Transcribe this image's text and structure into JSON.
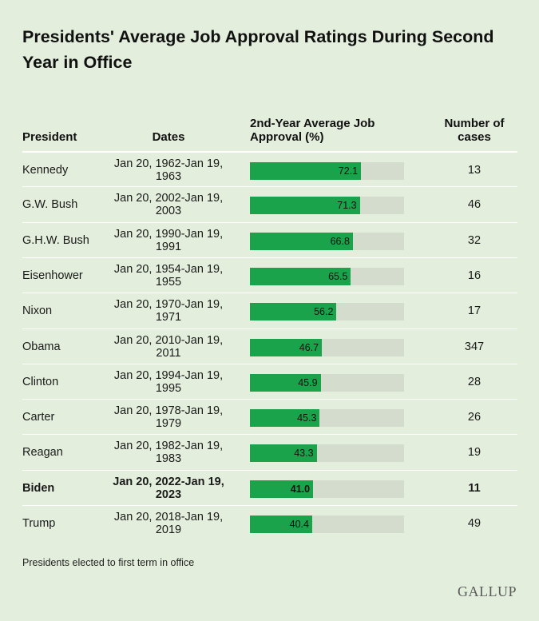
{
  "title": "Presidents' Average Job Approval Ratings During Second Year in Office",
  "headers": {
    "president": "President",
    "dates": "Dates",
    "approval": "2nd-Year Average Job Approval (%)",
    "cases": "Number of cases"
  },
  "colors": {
    "background": "#e3eedc",
    "bar": "#1aa34a",
    "bar_track": "#d3dccd"
  },
  "chart_data": {
    "type": "bar",
    "title": "Presidents' Average Job Approval Ratings During Second Year in Office",
    "ylabel": "2nd-Year Average Job Approval (%)",
    "ylim": [
      0,
      100
    ],
    "categories": [
      "Kennedy",
      "G.W. Bush",
      "G.H.W. Bush",
      "Eisenhower",
      "Nixon",
      "Obama",
      "Clinton",
      "Carter",
      "Reagan",
      "Biden",
      "Trump"
    ],
    "values": [
      72.1,
      71.3,
      66.8,
      65.5,
      56.2,
      46.7,
      45.9,
      45.3,
      43.3,
      41.0,
      40.4
    ],
    "rows": [
      {
        "president": "Kennedy",
        "dates": "Jan 20, 1962-Jan 19, 1963",
        "approval": 72.1,
        "approval_label": "72.1",
        "cases": "13",
        "highlight": false
      },
      {
        "president": "G.W. Bush",
        "dates": "Jan 20, 2002-Jan 19, 2003",
        "approval": 71.3,
        "approval_label": "71.3",
        "cases": "46",
        "highlight": false
      },
      {
        "president": "G.H.W. Bush",
        "dates": "Jan 20, 1990-Jan 19, 1991",
        "approval": 66.8,
        "approval_label": "66.8",
        "cases": "32",
        "highlight": false
      },
      {
        "president": "Eisenhower",
        "dates": "Jan 20, 1954-Jan 19, 1955",
        "approval": 65.5,
        "approval_label": "65.5",
        "cases": "16",
        "highlight": false
      },
      {
        "president": "Nixon",
        "dates": "Jan 20, 1970-Jan 19, 1971",
        "approval": 56.2,
        "approval_label": "56.2",
        "cases": "17",
        "highlight": false
      },
      {
        "president": "Obama",
        "dates": "Jan 20, 2010-Jan 19, 2011",
        "approval": 46.7,
        "approval_label": "46.7",
        "cases": "347",
        "highlight": false
      },
      {
        "president": "Clinton",
        "dates": "Jan 20, 1994-Jan 19, 1995",
        "approval": 45.9,
        "approval_label": "45.9",
        "cases": "28",
        "highlight": false
      },
      {
        "president": "Carter",
        "dates": "Jan 20, 1978-Jan 19, 1979",
        "approval": 45.3,
        "approval_label": "45.3",
        "cases": "26",
        "highlight": false
      },
      {
        "president": "Reagan",
        "dates": "Jan 20, 1982-Jan 19, 1983",
        "approval": 43.3,
        "approval_label": "43.3",
        "cases": "19",
        "highlight": false
      },
      {
        "president": "Biden",
        "dates": "Jan 20, 2022-Jan 19, 2023",
        "approval": 41.0,
        "approval_label": "41.0",
        "cases": "11",
        "highlight": true
      },
      {
        "president": "Trump",
        "dates": "Jan 20, 2018-Jan 19, 2019",
        "approval": 40.4,
        "approval_label": "40.4",
        "cases": "49",
        "highlight": false
      }
    ]
  },
  "footnote": "Presidents elected to first term in office",
  "logo": "GALLUP"
}
